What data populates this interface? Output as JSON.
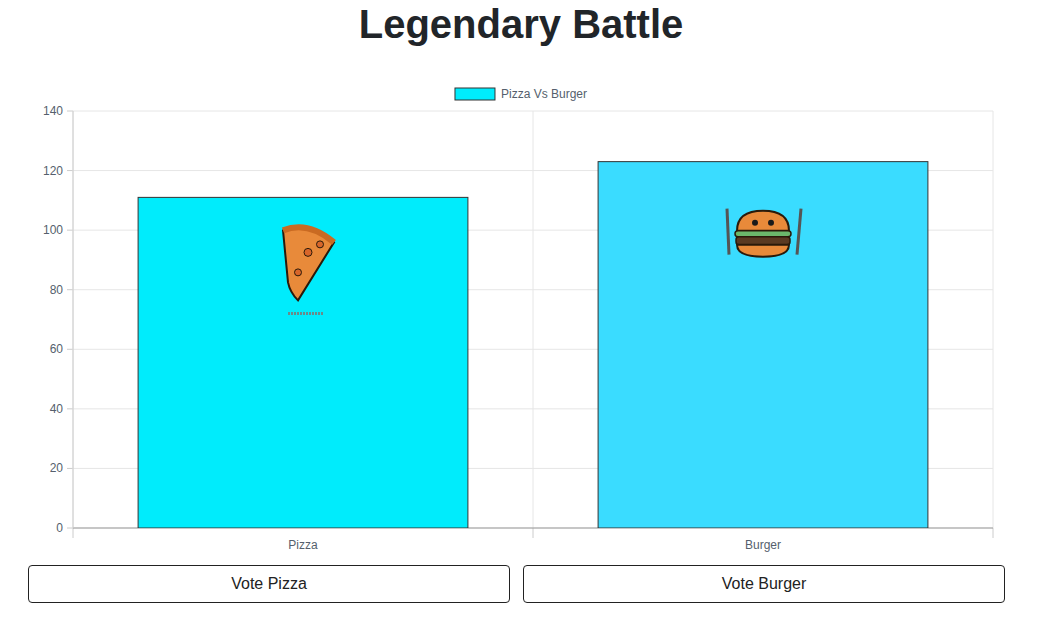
{
  "chart_data": {
    "type": "bar",
    "title": "Legendary Battle",
    "categories": [
      "Pizza",
      "Burger"
    ],
    "series": [
      {
        "name": "Pizza Vs Burger",
        "colors": [
          "#00ecfc",
          "#3adcff"
        ],
        "values": [
          111,
          123
        ]
      }
    ],
    "ylim": [
      0,
      140
    ],
    "yticks": [
      0,
      20,
      40,
      60,
      80,
      100,
      120,
      140
    ],
    "grid": true,
    "legend": "top"
  },
  "buttons": [
    "Vote Pizza",
    "Vote Burger"
  ]
}
